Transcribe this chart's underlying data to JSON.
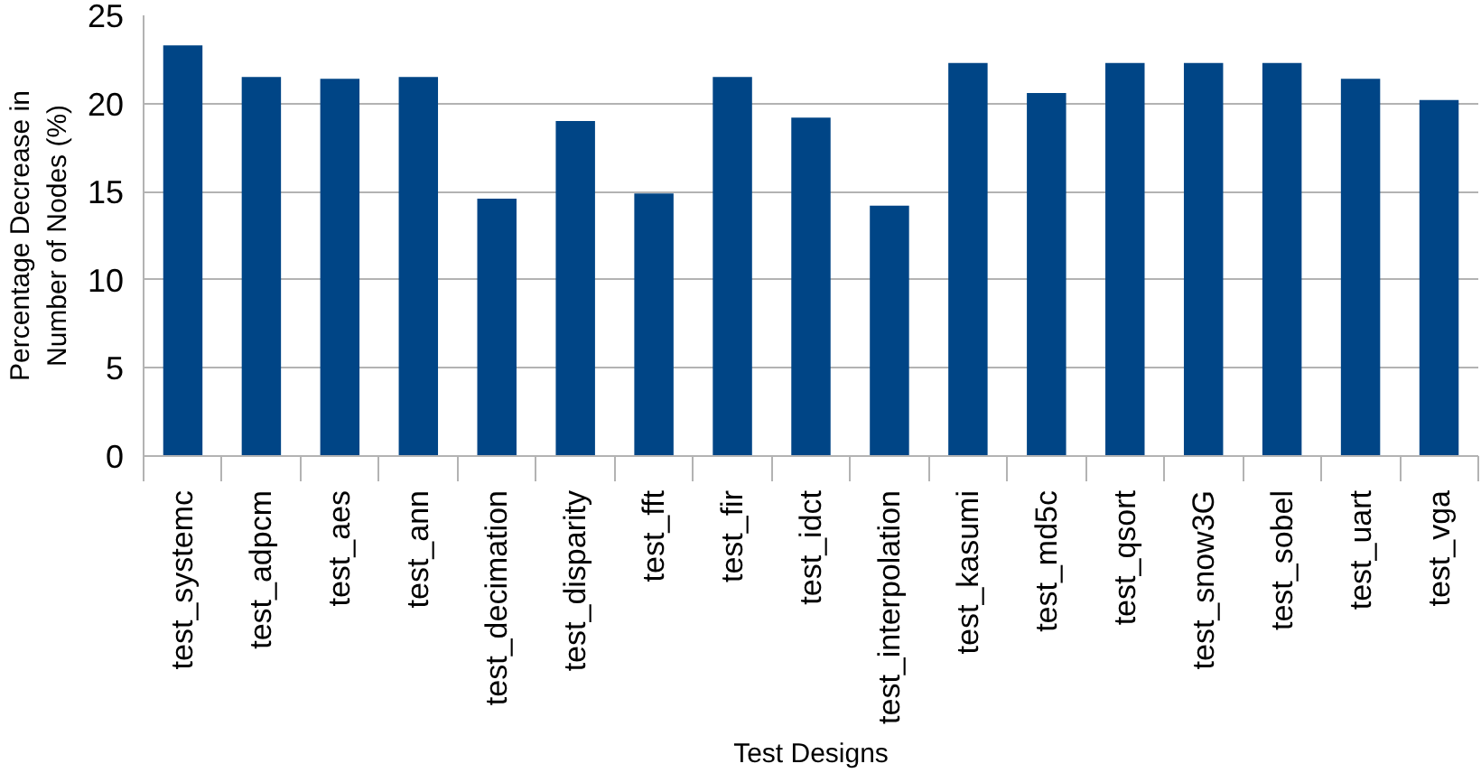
{
  "chart_data": {
    "type": "bar",
    "xlabel": "Test Designs",
    "ylabel": "Percentage Decrease in Number of Nodes (%)",
    "categories": [
      "test_systemc",
      "test_adpcm",
      "test_aes",
      "test_ann",
      "test_decimation",
      "test_disparity",
      "test_fft",
      "test_fir",
      "test_idct",
      "test_interpolation",
      "test_kasumi",
      "test_md5c",
      "test_qsort",
      "test_snow3G",
      "test_sobel",
      "test_uart",
      "test_vga"
    ],
    "values": [
      23.3,
      21.5,
      21.4,
      21.5,
      14.6,
      19.0,
      14.9,
      21.5,
      19.2,
      14.2,
      22.3,
      20.6,
      22.3,
      22.3,
      22.3,
      21.4,
      20.2
    ],
    "color": "#004586",
    "ylim": [
      0,
      25
    ],
    "yticks": [
      0,
      5,
      10,
      15,
      20,
      25
    ],
    "grid": "y"
  }
}
